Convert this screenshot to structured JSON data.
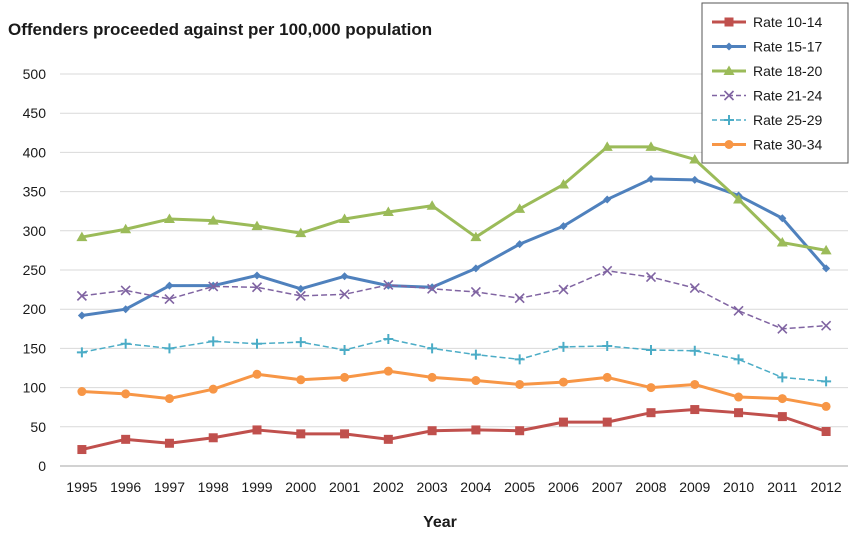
{
  "chart_data": {
    "type": "line",
    "title": "Offenders  proceeded against per 100,000 population",
    "xlabel": "Year",
    "ylabel": "",
    "ylim": [
      0,
      500
    ],
    "yticks": [
      0,
      50,
      100,
      150,
      200,
      250,
      300,
      350,
      400,
      450,
      500
    ],
    "categories": [
      "1995",
      "1996",
      "1997",
      "1998",
      "1999",
      "2000",
      "2001",
      "2002",
      "2003",
      "2004",
      "2005",
      "2006",
      "2007",
      "2008",
      "2009",
      "2010",
      "2011",
      "2012"
    ],
    "grid": true,
    "legend_position": "top-right",
    "series": [
      {
        "name": "Rate 10-14",
        "color": "#c0504d",
        "marker": "square",
        "values": [
          21,
          34,
          29,
          36,
          46,
          41,
          41,
          34,
          45,
          46,
          45,
          56,
          56,
          68,
          72,
          68,
          63,
          44
        ]
      },
      {
        "name": "Rate 15-17",
        "color": "#4f81bd",
        "marker": "diamond",
        "values": [
          192,
          200,
          230,
          230,
          243,
          226,
          242,
          230,
          228,
          252,
          283,
          306,
          340,
          366,
          365,
          345,
          316,
          252
        ]
      },
      {
        "name": "Rate 18-20",
        "color": "#9bbb59",
        "marker": "triangle",
        "values": [
          292,
          302,
          315,
          313,
          306,
          297,
          315,
          324,
          332,
          292,
          328,
          359,
          407,
          407,
          391,
          340,
          285,
          275
        ]
      },
      {
        "name": "Rate 21-24",
        "color": "#8064a2",
        "marker": "x",
        "dashed": true,
        "values": [
          217,
          224,
          213,
          229,
          228,
          217,
          219,
          231,
          226,
          222,
          214,
          225,
          249,
          241,
          227,
          198,
          175,
          179
        ]
      },
      {
        "name": "Rate 25-29",
        "color": "#4bacc6",
        "marker": "plus",
        "dashed": true,
        "values": [
          145,
          156,
          150,
          159,
          156,
          158,
          148,
          162,
          150,
          142,
          136,
          152,
          153,
          148,
          147,
          136,
          113,
          108
        ]
      },
      {
        "name": "Rate 30-34",
        "color": "#f79646",
        "marker": "circle",
        "values": [
          95,
          92,
          86,
          98,
          117,
          110,
          113,
          121,
          113,
          109,
          104,
          107,
          113,
          100,
          104,
          88,
          86,
          76
        ]
      }
    ]
  }
}
